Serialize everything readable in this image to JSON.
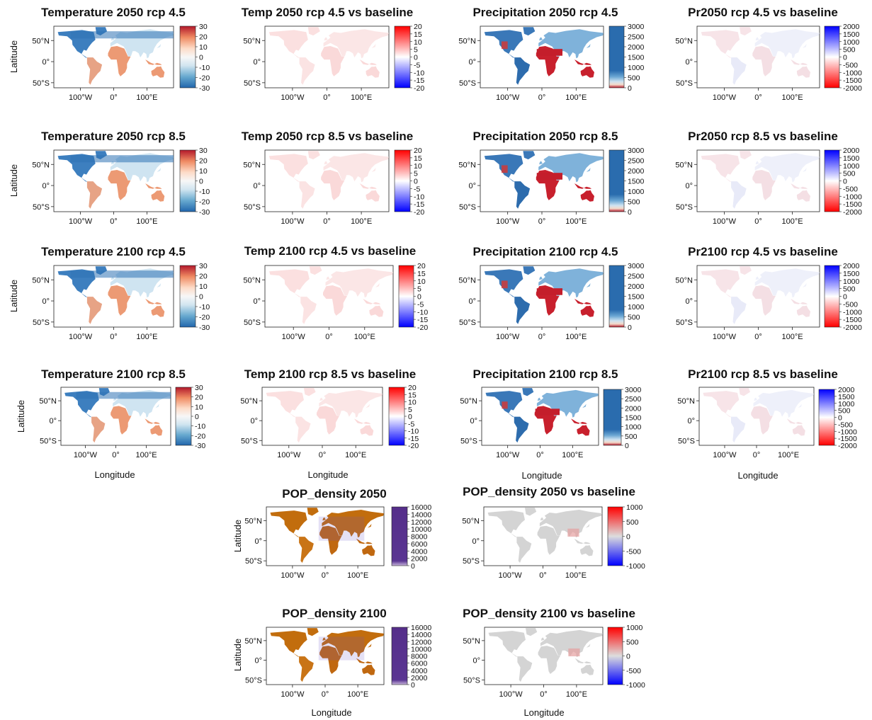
{
  "figure": {
    "lon_ticks": [
      "100°W",
      "0°",
      "100°E"
    ],
    "lat_ticks": [
      "50°N",
      "0°",
      "50°S"
    ],
    "xlabel": "Longitude",
    "ylabel": "Latitude",
    "panels": [
      {
        "id": "t2050_45",
        "title": "Temperature 2050 rcp 4.5",
        "variable": "temperature",
        "colorbar": [
          "30",
          "20",
          "10",
          "0",
          "-10",
          "-20",
          "-30"
        ]
      },
      {
        "id": "td2050_45",
        "title": "Temp 2050 rcp 4.5 vs baseline",
        "variable": "temperature-change",
        "colorbar": [
          "20",
          "15",
          "10",
          "5",
          "0",
          "-5",
          "-10",
          "-15",
          "-20"
        ]
      },
      {
        "id": "p2050_45",
        "title": "Precipitation 2050 rcp 4.5",
        "variable": "precipitation",
        "colorbar": [
          "3000",
          "2500",
          "2000",
          "1500",
          "1000",
          "500",
          "0"
        ]
      },
      {
        "id": "pd2050_45",
        "title": "Pr2050 rcp 4.5 vs baseline",
        "variable": "precipitation-change",
        "colorbar": [
          "2000",
          "1500",
          "1000",
          "500",
          "0",
          "-500",
          "-1000",
          "-1500",
          "-2000"
        ]
      },
      {
        "id": "t2050_85",
        "title": "Temperature 2050 rcp 8.5",
        "variable": "temperature",
        "colorbar": [
          "30",
          "20",
          "10",
          "0",
          "-10",
          "-20",
          "-30"
        ]
      },
      {
        "id": "td2050_85",
        "title": "Temp 2050 rcp 8.5 vs baseline",
        "variable": "temperature-change",
        "colorbar": [
          "20",
          "15",
          "10",
          "5",
          "0",
          "-5",
          "-10",
          "-15",
          "-20"
        ]
      },
      {
        "id": "p2050_85",
        "title": "Precipitation 2050 rcp 8.5",
        "variable": "precipitation",
        "colorbar": [
          "3000",
          "2500",
          "2000",
          "1500",
          "1000",
          "500",
          "0"
        ]
      },
      {
        "id": "pd2050_85",
        "title": "Pr2050 rcp 8.5 vs baseline",
        "variable": "precipitation-change",
        "colorbar": [
          "2000",
          "1500",
          "1000",
          "500",
          "0",
          "-500",
          "-1000",
          "-1500",
          "-2000"
        ]
      },
      {
        "id": "t2100_45",
        "title": "Temperature 2100 rcp 4.5",
        "variable": "temperature",
        "colorbar": [
          "30",
          "20",
          "10",
          "0",
          "-10",
          "-20",
          "-30"
        ]
      },
      {
        "id": "td2100_45",
        "title": "Temp 2100 rcp 4.5 vs baseline",
        "variable": "temperature-change",
        "colorbar": [
          "20",
          "15",
          "10",
          "5",
          "0",
          "-5",
          "-10",
          "-15",
          "-20"
        ]
      },
      {
        "id": "p2100_45",
        "title": "Precipitation 2100 rcp 4.5",
        "variable": "precipitation",
        "colorbar": [
          "3000",
          "2500",
          "2000",
          "1500",
          "1000",
          "500",
          "0"
        ]
      },
      {
        "id": "pd2100_45",
        "title": "Pr2100 rcp 4.5 vs baseline",
        "variable": "precipitation-change",
        "colorbar": [
          "2000",
          "1500",
          "1000",
          "500",
          "0",
          "-500",
          "-1000",
          "-1500",
          "-2000"
        ]
      },
      {
        "id": "t2100_85",
        "title": "Temperature 2100 rcp 8.5",
        "variable": "temperature",
        "colorbar": [
          "30",
          "20",
          "10",
          "0",
          "-10",
          "-20",
          "-30"
        ]
      },
      {
        "id": "td2100_85",
        "title": "Temp 2100 rcp 8.5 vs baseline",
        "variable": "temperature-change",
        "colorbar": [
          "20",
          "15",
          "10",
          "5",
          "0",
          "-5",
          "-10",
          "-15",
          "-20"
        ]
      },
      {
        "id": "p2100_85",
        "title": "Precipitation 2100 rcp 8.5",
        "variable": "precipitation",
        "colorbar": [
          "3000",
          "2500",
          "2000",
          "1500",
          "1000",
          "500",
          "0"
        ]
      },
      {
        "id": "pd2100_85",
        "title": "Pr2100 rcp 8.5 vs baseline",
        "variable": "precipitation-change",
        "colorbar": [
          "2000",
          "1500",
          "1000",
          "500",
          "0",
          "-500",
          "-1000",
          "-1500",
          "-2000"
        ]
      },
      {
        "id": "pop2050",
        "title": "POP_density 2050",
        "variable": "population-density",
        "colorbar": [
          "16000",
          "14000",
          "12000",
          "10000",
          "8000",
          "6000",
          "4000",
          "2000",
          "0"
        ]
      },
      {
        "id": "popd2050",
        "title": "POP_density 2050 vs baseline",
        "variable": "population-change",
        "colorbar": [
          "1000",
          "500",
          "0",
          "-500",
          "-1000"
        ]
      },
      {
        "id": "pop2100",
        "title": "POP_density 2100",
        "variable": "population-density",
        "colorbar": [
          "16000",
          "14000",
          "12000",
          "10000",
          "8000",
          "6000",
          "4000",
          "2000",
          "0"
        ]
      },
      {
        "id": "popd2100",
        "title": "POP_density 2100 vs baseline",
        "variable": "population-change",
        "colorbar": [
          "1000",
          "500",
          "0",
          "-500",
          "-1000"
        ]
      }
    ]
  }
}
